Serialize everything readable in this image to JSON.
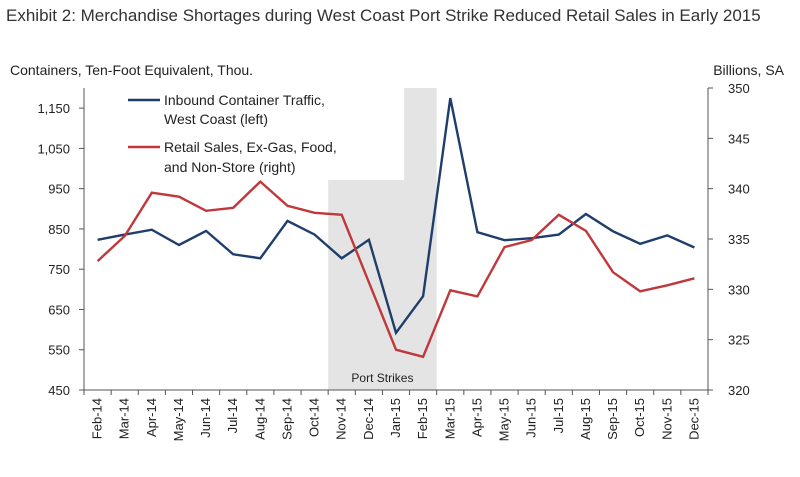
{
  "title": "Exhibit 2: Merchandise Shortages during West Coast Port Strike Reduced Retail Sales in Early 2015",
  "colors": {
    "container": "#1f3e6b",
    "retail": "#c0383b",
    "shade": "#e4e4e4",
    "axis": "#555555"
  },
  "chart_data": {
    "type": "line",
    "categories": [
      "Feb-14",
      "Mar-14",
      "Apr-14",
      "May-14",
      "Jun-14",
      "Jul-14",
      "Aug-14",
      "Sep-14",
      "Oct-14",
      "Nov-14",
      "Dec-14",
      "Jan-15",
      "Feb-15",
      "Mar-15",
      "Apr-15",
      "May-15",
      "Jun-15",
      "Jul-15",
      "Aug-15",
      "Sep-15",
      "Oct-15",
      "Nov-15",
      "Dec-15"
    ],
    "left_axis": {
      "label": "Containers, Ten-Foot  Equivalent, Thou.",
      "min": 450,
      "max": 1200,
      "ticks": [
        450,
        550,
        650,
        750,
        850,
        950,
        1050,
        1150
      ],
      "tick_labels": [
        "450",
        "550",
        "650",
        "750",
        "850",
        "950",
        "1,050",
        "1,150"
      ]
    },
    "right_axis": {
      "label": "Billions, SA",
      "min": 320,
      "max": 350,
      "ticks": [
        320,
        325,
        330,
        335,
        340,
        345,
        350
      ],
      "tick_labels": [
        "320",
        "325",
        "330",
        "335",
        "340",
        "345",
        "350"
      ]
    },
    "series": [
      {
        "name": "Inbound Container Traffic, West Coast (left)",
        "axis": "left",
        "legend_lines": [
          "Inbound Container Traffic,",
          "West Coast (left)"
        ],
        "values": [
          823,
          836,
          848,
          810,
          845,
          787,
          777,
          870,
          836,
          777,
          823,
          592,
          683,
          1175,
          842,
          822,
          827,
          836,
          887,
          844,
          813,
          834,
          804
        ]
      },
      {
        "name": "Retail Sales, Ex-Gas, Food, and Non-Store (right)",
        "axis": "right",
        "legend_lines": [
          "Retail Sales, Ex-Gas, Food,",
          "and Non-Store (right)"
        ],
        "values": [
          332.8,
          335.3,
          339.6,
          339.2,
          337.8,
          338.1,
          340.7,
          338.3,
          337.6,
          337.4,
          330.7,
          324.0,
          323.3,
          329.9,
          329.3,
          334.2,
          334.9,
          337.4,
          335.8,
          331.7,
          329.8,
          330.4,
          331.1
        ]
      }
    ],
    "shaded_region": {
      "label": "Port Strikes",
      "from": "Nov-14",
      "to": "Feb-15"
    },
    "grid": false
  }
}
